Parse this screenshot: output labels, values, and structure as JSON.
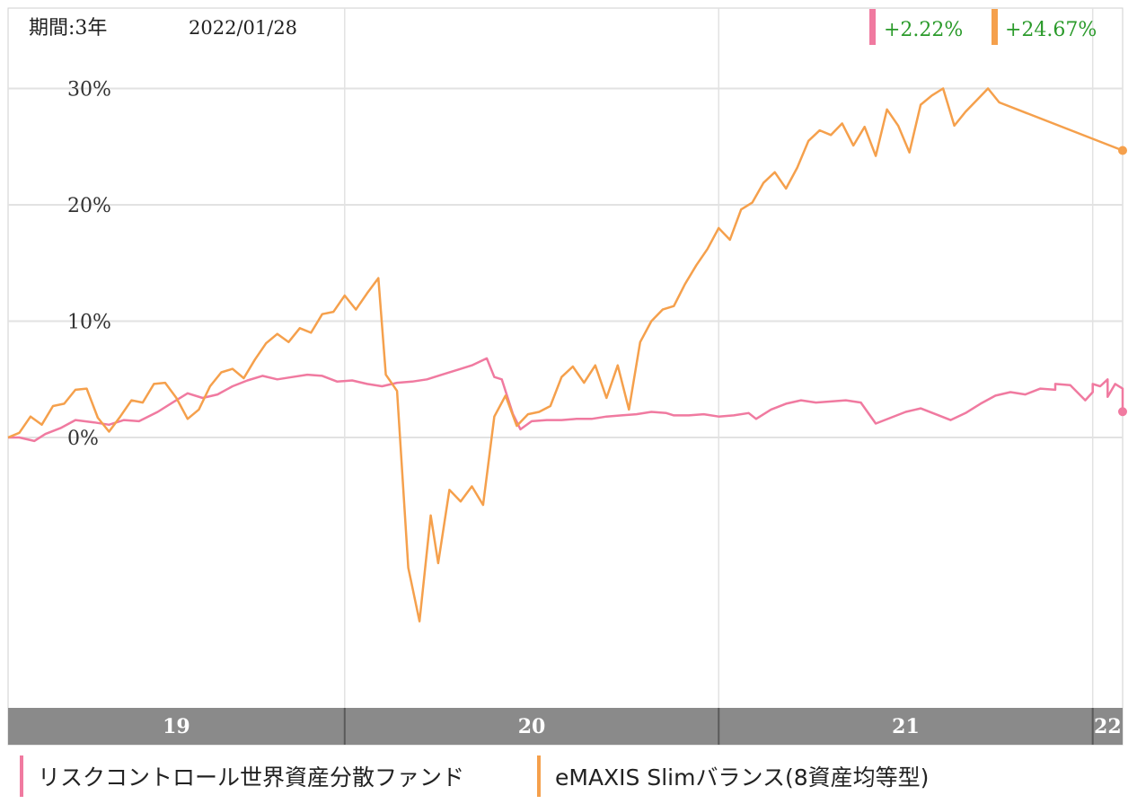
{
  "header": {
    "period_label": "期間:3年",
    "date_label": "2022/01/28"
  },
  "colors": {
    "series_a": "#f07aa0",
    "series_b": "#f5a04c",
    "return_text": "#2a9a2a",
    "grid": "#e2e2e2",
    "axis_bar": "#8a8a8a"
  },
  "chart_data": {
    "type": "line",
    "title": "",
    "xlabel": "",
    "ylabel": "",
    "x_tick_labels": [
      "19",
      "20",
      "21",
      "22"
    ],
    "y_tick_labels": [
      "30%",
      "20%",
      "10%",
      "0%"
    ],
    "ylim": [
      -26,
      37
    ],
    "xlim": [
      2019.1,
      2022.08
    ],
    "grid": true,
    "legend_position": "bottom",
    "series": [
      {
        "name": "リスクコントロール世界資産分散ファンド",
        "end_value_label": "+2.22%",
        "color": "#f07aa0",
        "points": [
          [
            2019.1,
            0.0
          ],
          [
            2019.13,
            0.0
          ],
          [
            2019.17,
            -0.3
          ],
          [
            2019.2,
            0.3
          ],
          [
            2019.24,
            0.8
          ],
          [
            2019.28,
            1.5
          ],
          [
            2019.33,
            1.3
          ],
          [
            2019.37,
            1.1
          ],
          [
            2019.41,
            1.5
          ],
          [
            2019.45,
            1.4
          ],
          [
            2019.5,
            2.2
          ],
          [
            2019.54,
            3.0
          ],
          [
            2019.58,
            3.8
          ],
          [
            2019.62,
            3.4
          ],
          [
            2019.66,
            3.7
          ],
          [
            2019.7,
            4.4
          ],
          [
            2019.74,
            4.9
          ],
          [
            2019.78,
            5.3
          ],
          [
            2019.82,
            5.0
          ],
          [
            2019.86,
            5.2
          ],
          [
            2019.9,
            5.4
          ],
          [
            2019.94,
            5.3
          ],
          [
            2019.98,
            4.8
          ],
          [
            2020.02,
            4.9
          ],
          [
            2020.06,
            4.6
          ],
          [
            2020.1,
            4.4
          ],
          [
            2020.14,
            4.7
          ],
          [
            2020.18,
            4.8
          ],
          [
            2020.22,
            5.0
          ],
          [
            2020.26,
            5.4
          ],
          [
            2020.3,
            5.8
          ],
          [
            2020.34,
            6.2
          ],
          [
            2020.38,
            6.8
          ],
          [
            2020.4,
            5.2
          ],
          [
            2020.42,
            5.0
          ],
          [
            2020.45,
            2.0
          ],
          [
            2020.47,
            0.7
          ],
          [
            2020.5,
            1.4
          ],
          [
            2020.54,
            1.5
          ],
          [
            2020.58,
            1.5
          ],
          [
            2020.62,
            1.6
          ],
          [
            2020.66,
            1.6
          ],
          [
            2020.7,
            1.8
          ],
          [
            2020.74,
            1.9
          ],
          [
            2020.78,
            2.0
          ],
          [
            2020.82,
            2.2
          ],
          [
            2020.86,
            2.1
          ],
          [
            2020.88,
            1.9
          ],
          [
            2020.92,
            1.9
          ],
          [
            2020.96,
            2.0
          ],
          [
            2021.0,
            1.8
          ],
          [
            2021.04,
            1.9
          ],
          [
            2021.08,
            2.1
          ],
          [
            2021.1,
            1.6
          ],
          [
            2021.14,
            2.4
          ],
          [
            2021.18,
            2.9
          ],
          [
            2021.22,
            3.2
          ],
          [
            2021.26,
            3.0
          ],
          [
            2021.3,
            3.1
          ],
          [
            2021.34,
            3.2
          ],
          [
            2021.38,
            3.0
          ],
          [
            2021.42,
            1.2
          ],
          [
            2021.46,
            1.7
          ],
          [
            2021.5,
            2.2
          ],
          [
            2021.54,
            2.5
          ],
          [
            2021.58,
            2.0
          ],
          [
            2021.62,
            1.5
          ],
          [
            2021.66,
            2.1
          ],
          [
            2021.7,
            2.9
          ],
          [
            2021.74,
            3.6
          ],
          [
            2021.78,
            3.9
          ],
          [
            2021.82,
            3.7
          ],
          [
            2021.86,
            4.2
          ],
          [
            2021.9,
            4.1
          ],
          [
            2021.94,
            4.5
          ],
          [
            2021.98,
            3.2
          ],
          [
            2022.0,
            3.9
          ],
          [
            2022.02,
            4.4
          ],
          [
            2022.04,
            5.0
          ],
          [
            2022.06,
            4.6
          ],
          [
            2022.08,
            4.2
          ],
          [
            2021.9,
            4.6
          ],
          [
            2021.94,
            4.5
          ],
          [
            2022.0,
            4.6
          ],
          [
            2022.04,
            3.5
          ],
          [
            2022.08,
            2.22
          ]
        ]
      },
      {
        "name": "eMAXIS Slimバランス(8資産均等型)",
        "end_value_label": "+24.67%",
        "color": "#f5a04c",
        "points": [
          [
            2019.1,
            0.0
          ],
          [
            2019.13,
            0.4
          ],
          [
            2019.16,
            1.8
          ],
          [
            2019.19,
            1.1
          ],
          [
            2019.22,
            2.7
          ],
          [
            2019.25,
            2.9
          ],
          [
            2019.28,
            4.1
          ],
          [
            2019.31,
            4.2
          ],
          [
            2019.34,
            1.7
          ],
          [
            2019.37,
            0.5
          ],
          [
            2019.4,
            1.8
          ],
          [
            2019.43,
            3.2
          ],
          [
            2019.46,
            3.0
          ],
          [
            2019.49,
            4.6
          ],
          [
            2019.52,
            4.7
          ],
          [
            2019.55,
            3.4
          ],
          [
            2019.58,
            1.6
          ],
          [
            2019.61,
            2.4
          ],
          [
            2019.64,
            4.4
          ],
          [
            2019.67,
            5.6
          ],
          [
            2019.7,
            5.9
          ],
          [
            2019.73,
            5.1
          ],
          [
            2019.76,
            6.7
          ],
          [
            2019.79,
            8.1
          ],
          [
            2019.82,
            8.9
          ],
          [
            2019.85,
            8.2
          ],
          [
            2019.88,
            9.4
          ],
          [
            2019.91,
            9.0
          ],
          [
            2019.94,
            10.6
          ],
          [
            2019.97,
            10.8
          ],
          [
            2020.0,
            12.2
          ],
          [
            2020.03,
            11.0
          ],
          [
            2020.06,
            12.4
          ],
          [
            2020.09,
            13.7
          ],
          [
            2020.11,
            5.4
          ],
          [
            2020.14,
            4.0
          ],
          [
            2020.17,
            -11.2
          ],
          [
            2020.2,
            -15.8
          ],
          [
            2020.23,
            -6.7
          ],
          [
            2020.25,
            -10.8
          ],
          [
            2020.28,
            -4.5
          ],
          [
            2020.31,
            -5.5
          ],
          [
            2020.34,
            -4.2
          ],
          [
            2020.37,
            -5.8
          ],
          [
            2020.4,
            1.8
          ],
          [
            2020.43,
            3.6
          ],
          [
            2020.46,
            1.0
          ],
          [
            2020.49,
            2.0
          ],
          [
            2020.52,
            2.2
          ],
          [
            2020.55,
            2.7
          ],
          [
            2020.58,
            5.2
          ],
          [
            2020.61,
            6.1
          ],
          [
            2020.64,
            4.7
          ],
          [
            2020.67,
            6.2
          ],
          [
            2020.7,
            3.4
          ],
          [
            2020.73,
            6.2
          ],
          [
            2020.76,
            2.4
          ],
          [
            2020.79,
            8.2
          ],
          [
            2020.82,
            10.0
          ],
          [
            2020.85,
            11.0
          ],
          [
            2020.88,
            11.3
          ],
          [
            2020.91,
            13.2
          ],
          [
            2020.94,
            14.8
          ],
          [
            2020.97,
            16.2
          ],
          [
            2021.0,
            18.0
          ],
          [
            2021.03,
            17.0
          ],
          [
            2021.06,
            19.6
          ],
          [
            2021.09,
            20.2
          ],
          [
            2021.12,
            21.9
          ],
          [
            2021.15,
            22.8
          ],
          [
            2021.18,
            21.4
          ],
          [
            2021.21,
            23.2
          ],
          [
            2021.24,
            25.5
          ],
          [
            2021.27,
            26.4
          ],
          [
            2021.3,
            26.0
          ],
          [
            2021.33,
            27.0
          ],
          [
            2021.36,
            25.1
          ],
          [
            2021.39,
            26.7
          ],
          [
            2021.42,
            24.2
          ],
          [
            2021.45,
            28.2
          ],
          [
            2021.48,
            26.8
          ],
          [
            2021.51,
            24.5
          ],
          [
            2021.54,
            28.6
          ],
          [
            2021.57,
            29.4
          ],
          [
            2021.6,
            30.0
          ],
          [
            2021.63,
            26.8
          ],
          [
            2021.66,
            28.0
          ],
          [
            2021.69,
            29.0
          ],
          [
            2021.72,
            30.0
          ],
          [
            2021.75,
            28.8
          ],
          [
            2022.08,
            24.67
          ]
        ]
      }
    ]
  },
  "legend": {
    "items": [
      {
        "label": "リスクコントロール世界資産分散ファンド"
      },
      {
        "label": "eMAXIS Slimバランス(8資産均等型)"
      }
    ]
  }
}
